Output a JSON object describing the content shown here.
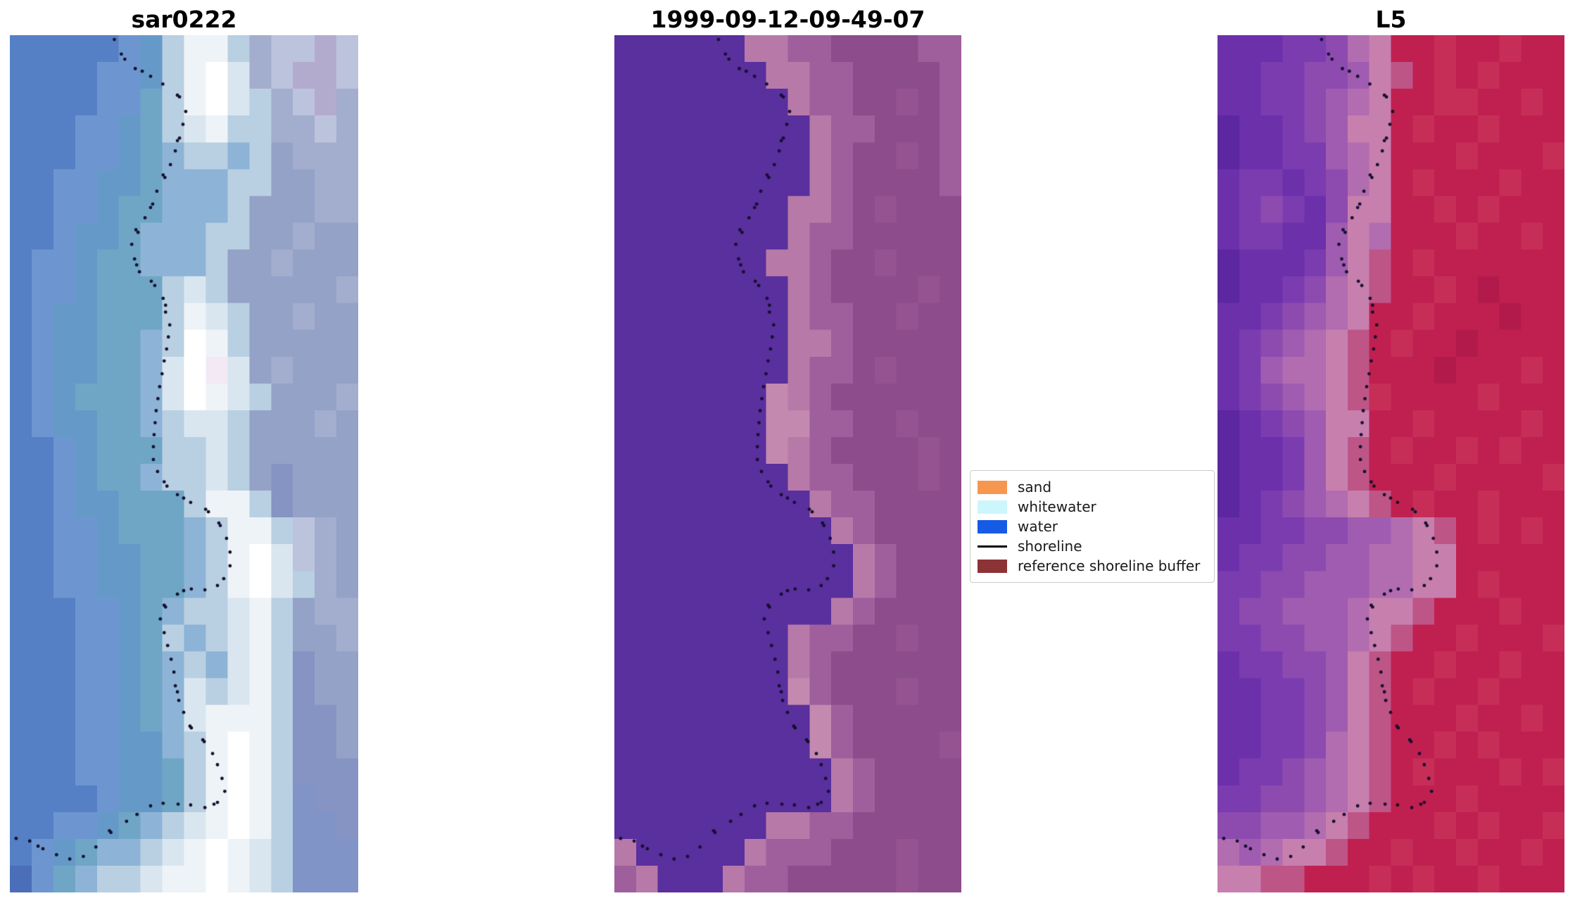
{
  "figure": {
    "background": "#ffffff",
    "dot_color": "#150f2e",
    "dot_radius": 2.4
  },
  "panels": [
    {
      "title": "sar0222",
      "palette": {
        "0": "#4a6fb8",
        "1": "#5580c5",
        "2": "#6d96d0",
        "3": "#659ac8",
        "4": "#6fa6c6",
        "5": "#8db4d6",
        "6": "#b9cfe2",
        "7": "#d9e6ef",
        "8": "#eef3f7",
        "9": "#ffffff",
        "g": "#f2e9f4",
        "a": "#95a2c7",
        "b": "#a3adcd",
        "c": "#bcc3dd",
        "d": "#8594c2",
        "e": "#b3abcd",
        "f": "#8094c8"
      },
      "grid": [
        "11111236886bccec",
        "11112236897bceec",
        "111122468976bceb",
        "111223467866bbcb",
        "111223456656abbb",
        "112233455566aabb",
        "11223445556aaabb",
        "11233455566aabaa",
        "1223445556aabaaa",
        "1223444676aaaaab",
        "12334446876aabaa",
        "12334456986aaaaa",
        "123344579g7abaaa",
        "123444579876aaab",
        "12334456776aaaba",
        "11234446676aaaaa",
        "11234456676adaaa",
        "112334446886daaa",
        "1122344456886cba",
        "1122334456897cba",
        "11223344568976ba",
        "1112234566786abb",
        "1112234656786aab",
        "1112234565786daa",
        "1112234576786daa",
        "1112234578886dda",
        "1112233568986dda",
        "1112233468986ddd",
        "1111233468986fdd",
        "1122345678986ffd",
        "1234556789876fff",
        "0245667889876fff"
      ]
    },
    {
      "title": "1999-09-12-09-49-07",
      "palette": {
        "0": "#5a2f9e",
        "2": "#b779a8",
        "3": "#9f5f9d",
        "4": "#8d4c8c",
        "5": "#955391",
        "6": "#c389af",
        "7": "#84458b"
      },
      "grid": [
        "0000002233444433",
        "0000000223344443",
        "0000000023344543",
        "0000000002334443",
        "0000000002344543",
        "0000000002344443",
        "0000000022345444",
        "0000000023344444",
        "0000000223445444",
        "0000000023444454",
        "0000000023344544",
        "0000000022344444",
        "0000000023345444",
        "0000000623444444",
        "0000000663344544",
        "0000000623444454",
        "0000000023344454",
        "0000000002334444",
        "0000000000234444",
        "0000000000023444",
        "0000000000023444",
        "0000000000234444",
        "0000000023344544",
        "0000000023444444",
        "0000000063444544",
        "0000000006344444",
        "0000000006344445",
        "0000000000234444",
        "0000000000234444",
        "0000000223344444",
        "2000002333444544",
        "3200023344444544"
      ]
    },
    {
      "title": "L5",
      "palette": {
        "0": "#5c27a0",
        "1": "#6c30ab",
        "2": "#7b3cb0",
        "3": "#8d4bb0",
        "4": "#a05cb0",
        "5": "#b26cb0",
        "6": "#c77fae",
        "7": "#be5587",
        "8": "#c02050",
        "9": "#c62e58",
        "a": "#b31a4c"
      },
      "grid": [
        "1112235688988988",
        "1122334678989888",
        "1122345688998898",
        "0112346689889888",
        "0112245688898889",
        "1221235689888988",
        "1232136688989888",
        "1221146588898898",
        "0111246789888888",
        "011235678898a888",
        "1123456889888a88",
        "12345678988a8888",
        "1245567888a88898",
        "1234567988889888",
        "0123466889888898",
        "0112467898898988",
        "0112467888988889",
        "0123456789889888",
        "1122334456789898",
        "1223344556688888",
        "2233444556689888",
        "2334445667888988",
        "2233445678898889",
        "1223346788988988",
        "1122346789889888",
        "1122346788898898",
        "1122356788989888",
        "1223456789888989",
        "2233456788898888",
        "3344567888989889",
        "5456678898898898",
        "6677888989889888"
      ]
    }
  ],
  "shoreline": {
    "points": [
      [
        0.3,
        0.005
      ],
      [
        0.32,
        0.022
      ],
      [
        0.33,
        0.028
      ],
      [
        0.36,
        0.039
      ],
      [
        0.38,
        0.042
      ],
      [
        0.404,
        0.048
      ],
      [
        0.439,
        0.057
      ],
      [
        0.481,
        0.07
      ],
      [
        0.487,
        0.072
      ],
      [
        0.505,
        0.089
      ],
      [
        0.497,
        0.104
      ],
      [
        0.487,
        0.12
      ],
      [
        0.481,
        0.123
      ],
      [
        0.475,
        0.135
      ],
      [
        0.461,
        0.151
      ],
      [
        0.44,
        0.163
      ],
      [
        0.445,
        0.166
      ],
      [
        0.422,
        0.182
      ],
      [
        0.41,
        0.197
      ],
      [
        0.404,
        0.201
      ],
      [
        0.388,
        0.213
      ],
      [
        0.362,
        0.227
      ],
      [
        0.368,
        0.23
      ],
      [
        0.35,
        0.244
      ],
      [
        0.358,
        0.261
      ],
      [
        0.364,
        0.268
      ],
      [
        0.372,
        0.276
      ],
      [
        0.406,
        0.287
      ],
      [
        0.416,
        0.292
      ],
      [
        0.44,
        0.307
      ],
      [
        0.447,
        0.315
      ],
      [
        0.447,
        0.323
      ],
      [
        0.459,
        0.338
      ],
      [
        0.455,
        0.352
      ],
      [
        0.45,
        0.366
      ],
      [
        0.443,
        0.38
      ],
      [
        0.437,
        0.395
      ],
      [
        0.43,
        0.41
      ],
      [
        0.425,
        0.424
      ],
      [
        0.42,
        0.438
      ],
      [
        0.417,
        0.452
      ],
      [
        0.414,
        0.466
      ],
      [
        0.412,
        0.48
      ],
      [
        0.412,
        0.495
      ],
      [
        0.424,
        0.509
      ],
      [
        0.443,
        0.521
      ],
      [
        0.451,
        0.526
      ],
      [
        0.481,
        0.536
      ],
      [
        0.499,
        0.54
      ],
      [
        0.519,
        0.545
      ],
      [
        0.562,
        0.553
      ],
      [
        0.57,
        0.556
      ],
      [
        0.6,
        0.569
      ],
      [
        0.604,
        0.572
      ],
      [
        0.622,
        0.587
      ],
      [
        0.632,
        0.603
      ],
      [
        0.632,
        0.619
      ],
      [
        0.614,
        0.634
      ],
      [
        0.596,
        0.642
      ],
      [
        0.56,
        0.647
      ],
      [
        0.521,
        0.646
      ],
      [
        0.499,
        0.648
      ],
      [
        0.481,
        0.652
      ],
      [
        0.443,
        0.665
      ],
      [
        0.447,
        0.667
      ],
      [
        0.432,
        0.681
      ],
      [
        0.443,
        0.697
      ],
      [
        0.453,
        0.712
      ],
      [
        0.463,
        0.728
      ],
      [
        0.471,
        0.743
      ],
      [
        0.475,
        0.759
      ],
      [
        0.481,
        0.766
      ],
      [
        0.485,
        0.776
      ],
      [
        0.499,
        0.79
      ],
      [
        0.517,
        0.806
      ],
      [
        0.521,
        0.808
      ],
      [
        0.554,
        0.822
      ],
      [
        0.558,
        0.824
      ],
      [
        0.582,
        0.838
      ],
      [
        0.596,
        0.851
      ],
      [
        0.609,
        0.867
      ],
      [
        0.617,
        0.882
      ],
      [
        0.596,
        0.895
      ],
      [
        0.586,
        0.897
      ],
      [
        0.56,
        0.901
      ],
      [
        0.519,
        0.898
      ],
      [
        0.483,
        0.897
      ],
      [
        0.44,
        0.896
      ],
      [
        0.404,
        0.899
      ],
      [
        0.365,
        0.909
      ],
      [
        0.335,
        0.917
      ],
      [
        0.29,
        0.93
      ],
      [
        0.286,
        0.928
      ],
      [
        0.247,
        0.947
      ],
      [
        0.211,
        0.958
      ],
      [
        0.172,
        0.961
      ],
      [
        0.134,
        0.956
      ],
      [
        0.095,
        0.949
      ],
      [
        0.081,
        0.946
      ],
      [
        0.057,
        0.94
      ],
      [
        0.018,
        0.937
      ]
    ]
  },
  "legend": {
    "items": [
      {
        "label": "sand",
        "swatch": "patch",
        "color": "#f7964e"
      },
      {
        "label": "whitewater",
        "swatch": "patch",
        "color": "#ccf6fb"
      },
      {
        "label": "water",
        "swatch": "patch",
        "color": "#155be5"
      },
      {
        "label": "shoreline",
        "swatch": "line",
        "color": "#000000"
      },
      {
        "label": "reference shoreline buffer",
        "swatch": "patch",
        "color": "#8d3335"
      }
    ]
  },
  "chart_data": {
    "type": "heatmap",
    "subplots": [
      {
        "title": "sar0222"
      },
      {
        "title": "1999-09-12-09-49-07"
      },
      {
        "title": "L5"
      }
    ],
    "legend_entries": [
      "sand",
      "whitewater",
      "water",
      "shoreline",
      "reference shoreline buffer"
    ],
    "legend_position": "center right, between second and third subplot",
    "grid": "off",
    "axes": "off",
    "overlay": "black dotted shoreline on each subplot"
  }
}
